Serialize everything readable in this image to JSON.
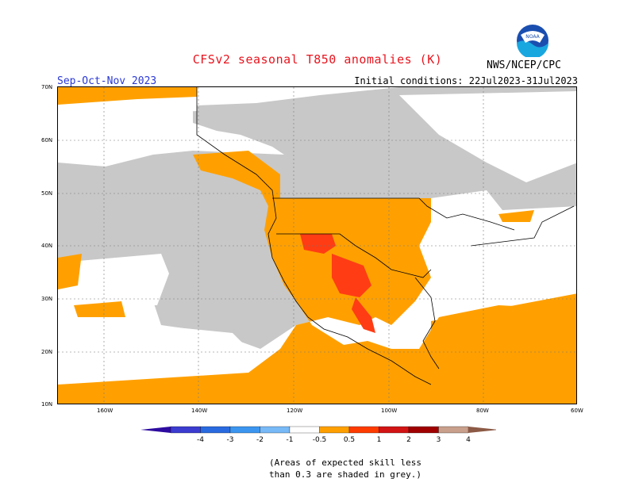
{
  "title": "CFSv2 seasonal T850 anomalies (K)",
  "period": "Sep-Oct-Nov 2023",
  "initial_conditions": "Initial conditions: 22Jul2023-31Jul2023",
  "organization": "NWS/NCEP/CPC",
  "logo_text": "NOAA",
  "lat_labels": [
    "70N",
    "60N",
    "50N",
    "40N",
    "30N",
    "20N",
    "10N"
  ],
  "lon_labels": [
    "160W",
    "140W",
    "120W",
    "100W",
    "80W",
    "60W"
  ],
  "legend": {
    "ticks": [
      "-4",
      "-3",
      "-2",
      "-1",
      "-0.5",
      "0.5",
      "1",
      "2",
      "3",
      "4"
    ],
    "colors": [
      "#2d0ba0",
      "#3c3cd0",
      "#2a6ae0",
      "#3c96f0",
      "#78b9f7",
      "#ffffff",
      "#ffa000",
      "#ff3c00",
      "#d21414",
      "#a00000",
      "#c8a08c",
      "#8c5a46"
    ]
  },
  "skill_note_line1": "(Areas of expected skill less",
  "skill_note_line2": "than 0.3 are shaded in grey.)",
  "colors": {
    "grey": "#c8c8c8",
    "orange": "#ffa000",
    "red": "#ff3c14",
    "white": "#ffffff"
  }
}
